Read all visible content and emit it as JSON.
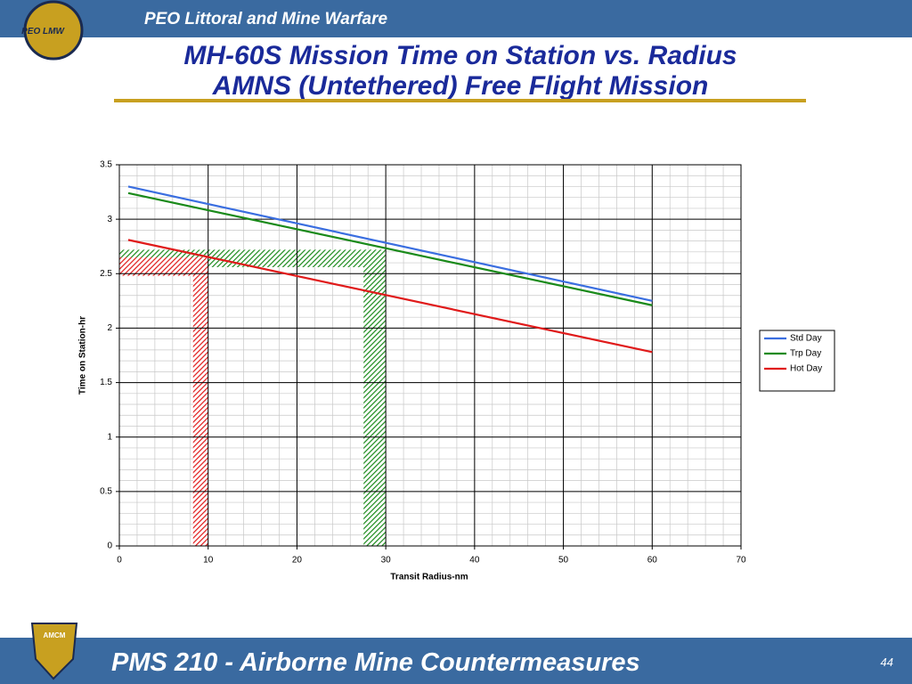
{
  "header": {
    "org": "PEO Littoral and Mine Warfare",
    "title_line1": "MH-60S Mission Time on Station vs. Radius",
    "title_line2": "AMNS (Untethered) Free Flight Mission",
    "logo_text": "PEO LMW"
  },
  "footer": {
    "text": "PMS 210 - Airborne Mine Countermeasures",
    "page": "44",
    "logo_text": "AMCM"
  },
  "chart_data": {
    "type": "line",
    "x": [
      1,
      60
    ],
    "series": [
      {
        "name": "Std Day",
        "color": "#3a6ee0",
        "values": [
          3.3,
          2.25
        ]
      },
      {
        "name": "Trp Day",
        "color": "#1a8a1a",
        "values": [
          3.24,
          2.21
        ]
      },
      {
        "name": "Hot Day",
        "color": "#e01a1a",
        "values": [
          2.81,
          1.78
        ]
      }
    ],
    "xlabel": "Transit Radius-nm",
    "ylabel": "Time on Station-hr",
    "xlim": [
      0,
      70
    ],
    "xticks": [
      0,
      10,
      20,
      30,
      40,
      50,
      60,
      70
    ],
    "ylim": [
      0,
      3.5
    ],
    "yticks": [
      0,
      0.5,
      1,
      1.5,
      2,
      2.5,
      3,
      3.5
    ],
    "grid": true,
    "minor_grid": {
      "x": 2,
      "y": 0.1
    },
    "legend": "right",
    "highlights": [
      {
        "color": "#1a8a1a",
        "x": [
          27.5,
          30
        ],
        "y": [
          2.56,
          2.72
        ]
      },
      {
        "color": "#e01a1a",
        "x": [
          8.3,
          10
        ],
        "y": [
          2.48,
          2.65
        ]
      }
    ]
  }
}
